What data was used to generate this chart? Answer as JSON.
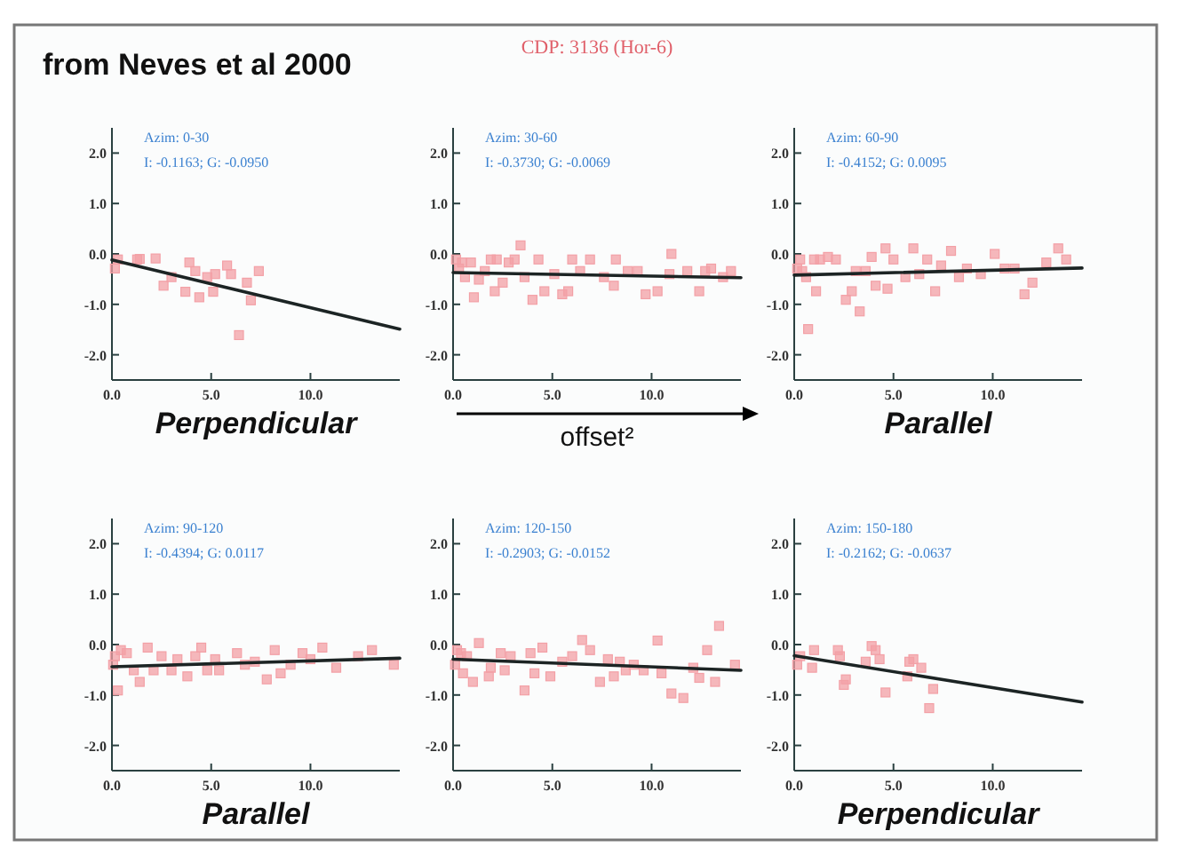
{
  "chart_data": [
    {
      "type": "scatter",
      "title": "from Neves et al 2000",
      "xlabel": "Perpendicular",
      "marker": "square",
      "xlim": [
        0,
        14.5
      ],
      "ylim": [
        -2.5,
        2.5
      ],
      "xticks": [
        {
          "value": 0,
          "label": "0.0"
        },
        {
          "value": 5,
          "label": "5.0"
        },
        {
          "value": 10,
          "label": "10.0"
        }
      ],
      "yticks": [
        {
          "value": 2,
          "label": "2.0"
        },
        {
          "value": 1,
          "label": "1.0"
        },
        {
          "value": 0,
          "label": "0.0"
        },
        {
          "value": -1,
          "label": "-1.0"
        },
        {
          "value": -2,
          "label": "-2.0"
        }
      ],
      "annotations": [
        "Azim: 0-30",
        "I: -0.1163; G: -0.0950"
      ],
      "series": [
        {
          "type": "scatter",
          "color": "#f3a0a6",
          "x": [
            0.15,
            0.3,
            1.27,
            1.4,
            2.2,
            2.6,
            3.0,
            3.7,
            3.9,
            4.2,
            4.4,
            4.8,
            5.1,
            5.2,
            5.8,
            6.0,
            6.4,
            6.8,
            7.0,
            7.4
          ],
          "values": [
            -0.29,
            -0.11,
            -0.11,
            -0.1,
            -0.09,
            -0.63,
            -0.46,
            -0.75,
            -0.17,
            -0.34,
            -0.86,
            -0.46,
            -0.75,
            -0.4,
            -0.23,
            -0.4,
            -1.61,
            -0.57,
            -0.92,
            -0.34
          ]
        },
        {
          "type": "line",
          "color": "#1c2424",
          "x": [
            0,
            14.5
          ],
          "values": [
            -0.12,
            -1.49
          ],
          "marker": "none"
        }
      ]
    },
    {
      "type": "scatter",
      "title": "CDP: 3136 (Hor-6)",
      "xlabel": "offset²",
      "marker": "square",
      "xlim": [
        0,
        14.5
      ],
      "ylim": [
        -2.5,
        2.5
      ],
      "xticks": [
        {
          "value": 0,
          "label": "0.0"
        },
        {
          "value": 5,
          "label": "5.0"
        },
        {
          "value": 10,
          "label": "10.0"
        }
      ],
      "yticks": [
        {
          "value": 2,
          "label": "2.0"
        },
        {
          "value": 1,
          "label": "1.0"
        },
        {
          "value": 0,
          "label": "0.0"
        },
        {
          "value": -1,
          "label": "-1.0"
        },
        {
          "value": -2,
          "label": "-2.0"
        }
      ],
      "annotations": [
        "Azim: 30-60",
        "I: -0.3730; G: -0.0069"
      ],
      "series": [
        {
          "type": "scatter",
          "color": "#f3a0a6",
          "x": [
            0.15,
            0.3,
            0.45,
            0.6,
            0.9,
            1.05,
            1.3,
            1.6,
            1.9,
            2.1,
            2.2,
            2.5,
            2.8,
            3.1,
            3.4,
            3.6,
            4.0,
            4.3,
            4.6,
            5.1,
            5.5,
            5.8,
            6.0,
            6.4,
            6.9,
            7.6,
            8.1,
            8.2,
            8.8,
            9.3,
            9.7,
            10.3,
            10.9,
            11.0,
            11.8,
            12.4,
            12.7,
            13.0,
            13.6,
            14.0
          ],
          "values": [
            -0.11,
            -0.29,
            -0.17,
            -0.46,
            -0.17,
            -0.86,
            -0.51,
            -0.34,
            -0.11,
            -0.74,
            -0.11,
            -0.57,
            -0.17,
            -0.11,
            0.17,
            -0.46,
            -0.91,
            -0.11,
            -0.74,
            -0.4,
            -0.8,
            -0.74,
            -0.11,
            -0.34,
            -0.11,
            -0.46,
            -0.63,
            -0.11,
            -0.34,
            -0.34,
            -0.8,
            -0.74,
            -0.4,
            0.0,
            -0.34,
            -0.74,
            -0.34,
            -0.29,
            -0.46,
            -0.34
          ]
        },
        {
          "type": "line",
          "color": "#1c2424",
          "x": [
            0,
            14.5
          ],
          "values": [
            -0.37,
            -0.47
          ],
          "marker": "none"
        }
      ]
    },
    {
      "type": "scatter",
      "xlabel": "Parallel",
      "marker": "square",
      "xlim": [
        0,
        14.5
      ],
      "ylim": [
        -2.5,
        2.5
      ],
      "xticks": [
        {
          "value": 0,
          "label": "0.0"
        },
        {
          "value": 5,
          "label": "5.0"
        },
        {
          "value": 10,
          "label": "10.0"
        }
      ],
      "yticks": [
        {
          "value": 2,
          "label": "2.0"
        },
        {
          "value": 1,
          "label": "1.0"
        },
        {
          "value": 0,
          "label": "0.0"
        },
        {
          "value": -1,
          "label": "-1.0"
        },
        {
          "value": -2,
          "label": "-2.0"
        }
      ],
      "annotations": [
        "Azim: 60-90",
        "I: -0.4152; G: 0.0095"
      ],
      "series": [
        {
          "type": "scatter",
          "color": "#f3a0a6",
          "x": [
            0.15,
            0.3,
            0.4,
            0.6,
            0.7,
            1.0,
            1.1,
            1.3,
            1.7,
            2.1,
            2.6,
            2.9,
            3.1,
            3.3,
            3.6,
            3.9,
            4.1,
            4.6,
            4.7,
            5.0,
            5.6,
            6.0,
            6.3,
            6.7,
            7.1,
            7.4,
            7.9,
            8.3,
            8.7,
            9.4,
            10.1,
            10.6,
            11.1,
            11.6,
            12.0,
            12.7,
            13.3,
            13.7
          ],
          "values": [
            -0.29,
            -0.11,
            -0.34,
            -0.46,
            -1.49,
            -0.11,
            -0.74,
            -0.11,
            -0.06,
            -0.11,
            -0.91,
            -0.74,
            -0.34,
            -1.14,
            -0.34,
            -0.06,
            -0.63,
            0.11,
            -0.69,
            -0.11,
            -0.46,
            0.11,
            -0.4,
            -0.11,
            -0.74,
            -0.23,
            0.06,
            -0.46,
            -0.29,
            -0.4,
            0.0,
            -0.29,
            -0.29,
            -0.8,
            -0.57,
            -0.17,
            0.11,
            -0.11
          ]
        },
        {
          "type": "line",
          "color": "#1c2424",
          "x": [
            0,
            14.5
          ],
          "values": [
            -0.42,
            -0.28
          ],
          "marker": "none"
        }
      ]
    },
    {
      "type": "scatter",
      "xlabel": "Parallel",
      "marker": "square",
      "xlim": [
        0,
        14.5
      ],
      "ylim": [
        -2.5,
        2.5
      ],
      "xticks": [
        {
          "value": 0,
          "label": "0.0"
        },
        {
          "value": 5,
          "label": "5.0"
        },
        {
          "value": 10,
          "label": "10.0"
        }
      ],
      "yticks": [
        {
          "value": 2,
          "label": "2.0"
        },
        {
          "value": 1,
          "label": "1.0"
        },
        {
          "value": 0,
          "label": "0.0"
        },
        {
          "value": -1,
          "label": "-1.0"
        },
        {
          "value": -2,
          "label": "-2.0"
        }
      ],
      "annotations": [
        "Azim: 90-120",
        "I: -0.4394; G: 0.0117"
      ],
      "series": [
        {
          "type": "scatter",
          "color": "#f3a0a6",
          "x": [
            0.06,
            0.15,
            0.3,
            0.45,
            0.75,
            1.1,
            1.4,
            1.8,
            2.1,
            2.5,
            3.0,
            3.3,
            3.8,
            4.2,
            4.5,
            4.8,
            5.2,
            5.4,
            6.3,
            6.7,
            7.2,
            7.8,
            8.2,
            8.5,
            9.0,
            9.6,
            10.0,
            10.6,
            11.3,
            12.4,
            13.1,
            14.2
          ],
          "values": [
            -0.4,
            -0.23,
            -0.91,
            -0.11,
            -0.17,
            -0.51,
            -0.74,
            -0.06,
            -0.51,
            -0.23,
            -0.51,
            -0.29,
            -0.63,
            -0.23,
            -0.06,
            -0.51,
            -0.29,
            -0.51,
            -0.17,
            -0.4,
            -0.34,
            -0.69,
            -0.11,
            -0.57,
            -0.4,
            -0.17,
            -0.29,
            -0.06,
            -0.46,
            -0.23,
            -0.11,
            -0.4
          ]
        },
        {
          "type": "line",
          "color": "#1c2424",
          "x": [
            0,
            14.5
          ],
          "values": [
            -0.44,
            -0.27
          ],
          "marker": "none"
        }
      ]
    },
    {
      "type": "scatter",
      "marker": "square",
      "xlim": [
        0,
        14.5
      ],
      "ylim": [
        -2.5,
        2.5
      ],
      "xticks": [
        {
          "value": 0,
          "label": "0.0"
        },
        {
          "value": 5,
          "label": "5.0"
        },
        {
          "value": 10,
          "label": "10.0"
        }
      ],
      "yticks": [
        {
          "value": 2,
          "label": "2.0"
        },
        {
          "value": 1,
          "label": "1.0"
        },
        {
          "value": 0,
          "label": "0.0"
        },
        {
          "value": -1,
          "label": "-1.0"
        },
        {
          "value": -2,
          "label": "-2.0"
        }
      ],
      "annotations": [
        "Azim: 120-150",
        "I: -0.2903; G: -0.0152"
      ],
      "series": [
        {
          "type": "scatter",
          "color": "#f3a0a6",
          "x": [
            0.1,
            0.2,
            0.4,
            0.5,
            0.7,
            1.0,
            1.3,
            1.8,
            1.9,
            2.4,
            2.6,
            2.9,
            3.6,
            3.9,
            4.1,
            4.5,
            4.9,
            5.5,
            6.0,
            6.5,
            6.9,
            7.4,
            7.8,
            8.1,
            8.4,
            8.7,
            9.1,
            9.6,
            10.3,
            10.5,
            11.0,
            11.6,
            12.1,
            12.4,
            12.8,
            13.2,
            13.4,
            14.2
          ],
          "values": [
            -0.4,
            -0.11,
            -0.17,
            -0.57,
            -0.23,
            -0.74,
            0.03,
            -0.63,
            -0.46,
            -0.17,
            -0.51,
            -0.23,
            -0.91,
            -0.17,
            -0.57,
            -0.06,
            -0.63,
            -0.34,
            -0.23,
            0.09,
            -0.11,
            -0.74,
            -0.29,
            -0.63,
            -0.34,
            -0.51,
            -0.4,
            -0.51,
            0.08,
            -0.57,
            -0.97,
            -1.06,
            -0.46,
            -0.66,
            -0.11,
            -0.74,
            0.37,
            -0.4
          ]
        },
        {
          "type": "line",
          "color": "#1c2424",
          "x": [
            0,
            14.5
          ],
          "values": [
            -0.29,
            -0.51
          ],
          "marker": "none"
        }
      ]
    },
    {
      "type": "scatter",
      "xlabel": "Perpendicular",
      "marker": "square",
      "xlim": [
        0,
        14.5
      ],
      "ylim": [
        -2.5,
        2.5
      ],
      "xticks": [
        {
          "value": 0,
          "label": "0.0"
        },
        {
          "value": 5,
          "label": "5.0"
        },
        {
          "value": 10,
          "label": "10.0"
        }
      ],
      "yticks": [
        {
          "value": 2,
          "label": "2.0"
        },
        {
          "value": 1,
          "label": "1.0"
        },
        {
          "value": 0,
          "label": "0.0"
        },
        {
          "value": -1,
          "label": "-1.0"
        },
        {
          "value": -2,
          "label": "-2.0"
        }
      ],
      "annotations": [
        "Azim: 150-180",
        "I: -0.2162; G: -0.0637"
      ],
      "series": [
        {
          "type": "scatter",
          "color": "#f3a0a6",
          "x": [
            0.15,
            0.3,
            0.9,
            1.0,
            2.2,
            2.3,
            2.5,
            2.6,
            3.6,
            3.9,
            4.1,
            4.3,
            4.6,
            5.7,
            5.8,
            6.0,
            6.4,
            6.8,
            7.0
          ],
          "values": [
            -0.4,
            -0.23,
            -0.46,
            -0.11,
            -0.11,
            -0.23,
            -0.8,
            -0.69,
            -0.34,
            -0.03,
            -0.11,
            -0.29,
            -0.95,
            -0.63,
            -0.34,
            -0.29,
            -0.46,
            -1.26,
            -0.88
          ]
        },
        {
          "type": "line",
          "color": "#1c2424",
          "x": [
            0,
            14.5
          ],
          "values": [
            -0.22,
            -1.14
          ],
          "marker": "none"
        }
      ]
    }
  ]
}
